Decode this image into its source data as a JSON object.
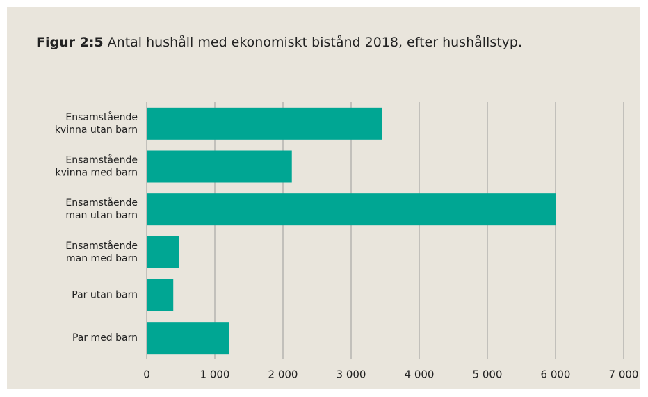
{
  "chart_data": {
    "type": "bar",
    "orientation": "horizontal",
    "title_label": "Figur 2:5",
    "title": "Antal hushåll med ekonomiskt bistånd 2018, efter hushållstyp.",
    "categories": [
      [
        "Ensamstående",
        "kvinna utan barn"
      ],
      [
        "Ensamstående",
        "kvinna med barn"
      ],
      [
        "Ensamstående",
        "man utan barn"
      ],
      [
        "Ensamstående",
        "man med barn"
      ],
      [
        "Par utan barn"
      ],
      [
        "Par med barn"
      ]
    ],
    "values": [
      3450,
      2130,
      6000,
      470,
      390,
      1210
    ],
    "color": "#00a693",
    "xlim": [
      0,
      7000
    ],
    "xticks": [
      0,
      {
        "value": 1000,
        "label": "1 000"
      },
      {
        "value": 2000,
        "label": "2 000"
      },
      {
        "value": 3000,
        "label": "3 000"
      },
      {
        "value": 4000,
        "label": "4 000"
      },
      {
        "value": 5000,
        "label": "5 000"
      },
      {
        "value": 6000,
        "label": "6 000"
      },
      {
        "value": 7000,
        "label": "7 000"
      }
    ],
    "grid": true
  }
}
